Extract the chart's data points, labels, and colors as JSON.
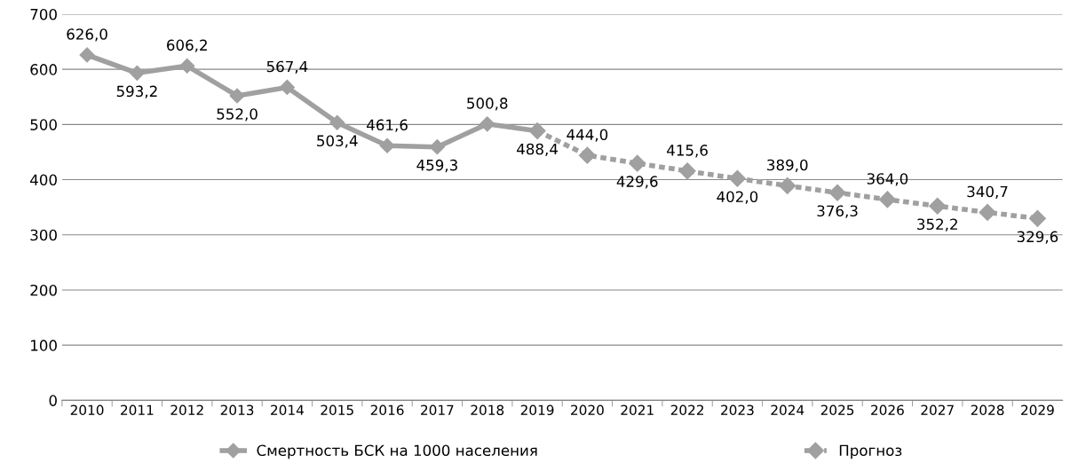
{
  "chart_data": {
    "type": "line",
    "categories": [
      "2010",
      "2011",
      "2012",
      "2013",
      "2014",
      "2015",
      "2016",
      "2017",
      "2018",
      "2019",
      "2020",
      "2021",
      "2022",
      "2023",
      "2024",
      "2025",
      "2026",
      "2027",
      "2028",
      "2029"
    ],
    "series": [
      {
        "name": "Смертность БСК на 1000 населения",
        "color": "#a0a0a0",
        "line_style": "solid",
        "values": [
          626.0,
          593.2,
          606.2,
          552.0,
          567.4,
          503.4,
          461.6,
          459.3,
          500.8,
          488.4,
          null,
          null,
          null,
          null,
          null,
          null,
          null,
          null,
          null,
          null
        ],
        "value_labels": [
          "626,0",
          "593,2",
          "606,2",
          "552,0",
          "567,4",
          "503,4",
          "461,6",
          "459,3",
          "500,8",
          "488,4",
          null,
          null,
          null,
          null,
          null,
          null,
          null,
          null,
          null,
          null
        ]
      },
      {
        "name": "Прогноз",
        "color": "#a0a0a0",
        "line_style": "dotted",
        "values": [
          null,
          null,
          null,
          null,
          null,
          null,
          null,
          null,
          null,
          488.4,
          444.0,
          429.6,
          415.6,
          402.0,
          389.0,
          376.3,
          364.0,
          352.2,
          340.7,
          329.6
        ],
        "value_labels": [
          null,
          null,
          null,
          null,
          null,
          null,
          null,
          null,
          null,
          null,
          "444,0",
          "429,6",
          "415,6",
          "402,0",
          "389,0",
          "376,3",
          "364,0",
          "352,2",
          "340,7",
          "329,6"
        ]
      }
    ],
    "ylim": [
      0,
      700
    ],
    "yticks": [
      0,
      100,
      200,
      300,
      400,
      500,
      600,
      700
    ],
    "grid": "y",
    "legend": "bottom",
    "marker": "diamond"
  }
}
